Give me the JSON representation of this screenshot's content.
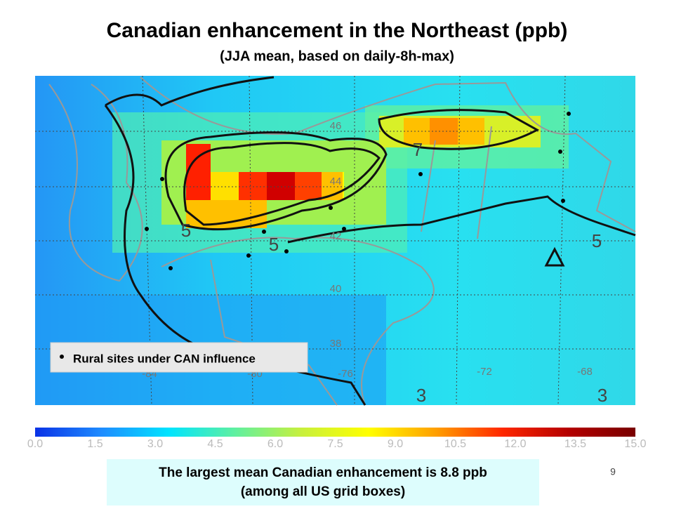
{
  "header": {
    "title": "Canadian enhancement in the Northeast (ppb)",
    "subtitle": "(JJA mean, based on daily-8h-max)"
  },
  "map": {
    "legend": "Rural sites under CAN influence",
    "lat_labels": [
      "46",
      "44",
      "42",
      "40",
      "38"
    ],
    "lon_labels": [
      "-84",
      "-80",
      "-76",
      "-72",
      "-68"
    ],
    "contour_labels": [
      "7",
      "5",
      "5",
      "5",
      "3",
      "3"
    ]
  },
  "colorbar": {
    "colors": [
      "#0a32e6",
      "#1e8cff",
      "#00e4ff",
      "#5ff0a0",
      "#c8f03c",
      "#ffff00",
      "#ffa000",
      "#ff2800",
      "#b40000",
      "#780000"
    ],
    "ticks": [
      {
        "value": 0,
        "label": "0.0"
      },
      {
        "value": 1.5,
        "label": "1.5"
      },
      {
        "value": 3,
        "label": "3.0"
      },
      {
        "value": 4.5,
        "label": "4.5"
      },
      {
        "value": 6,
        "label": "6.0"
      },
      {
        "value": 7.5,
        "label": "7.5"
      },
      {
        "value": 9,
        "label": "9.0"
      },
      {
        "value": 10.5,
        "label": "10.5"
      },
      {
        "value": 12,
        "label": "12.0"
      },
      {
        "value": 13.5,
        "label": "13.5"
      },
      {
        "value": 15,
        "label": "15.0"
      }
    ]
  },
  "footer": {
    "note_line1": "The largest mean Canadian enhancement is 8.8 ppb",
    "note_line2": "(among all US grid boxes)",
    "page_number": "9"
  }
}
